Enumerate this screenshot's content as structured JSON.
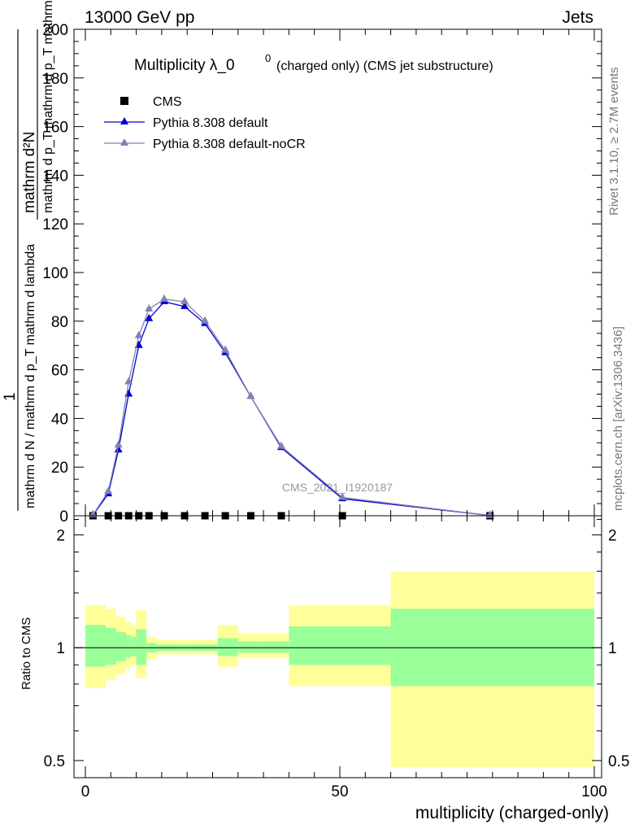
{
  "header": {
    "energy": "13000 GeV pp",
    "category": "Jets"
  },
  "side_labels": {
    "rivet": "Rivet 3.1.10, ≥ 2.7M events",
    "mcplots": "mcplots.cern.ch [arXiv:1306.3436]"
  },
  "chart_data": [
    {
      "type": "line",
      "title_main": "Multiplicity λ_0",
      "title_sup": "0",
      "title_small": "(charged only) (CMS jet substructure)",
      "ylabel_num": "1",
      "ylabel_den": "mathrm d N / mathrm d p_T mathrm d lambda",
      "ylabel_frac_num": "mathrm d²N",
      "ylabel_frac_den": "mathrm d p_T mathrm d p_T mathrm d lambda",
      "watermark": "CMS_2021_I1920187",
      "ylim": [
        0,
        200
      ],
      "y_ticks": [
        0,
        20,
        40,
        60,
        80,
        100,
        120,
        140,
        160,
        180,
        200
      ],
      "xlim": [
        -2,
        100
      ],
      "legend_position": "top-left",
      "legend": [
        "CMS",
        "Pythia 8.308 default",
        "Pythia 8.308 default-noCR"
      ],
      "series": [
        {
          "name": "CMS",
          "color": "#000000",
          "marker": "square",
          "x": [
            1.5,
            4.5,
            6.5,
            8.5,
            10.5,
            12.5,
            15.5,
            19.5,
            23.5,
            27.5,
            32.5,
            38.5,
            50.5,
            79.5
          ],
          "y": [
            0,
            0,
            0,
            0,
            0,
            0,
            0,
            0,
            0,
            0,
            0,
            0,
            0,
            0
          ]
        },
        {
          "name": "Pythia 8.308 default",
          "color": "#0000cc",
          "marker": "triangle",
          "x": [
            1.5,
            4.5,
            6.5,
            8.5,
            10.5,
            12.5,
            15.5,
            19.5,
            23.5,
            27.5,
            32.5,
            38.5,
            50.5,
            79.5
          ],
          "y": [
            0.3,
            9,
            27,
            50,
            70,
            81,
            88,
            86,
            79,
            67,
            49,
            28,
            7,
            0.1
          ]
        },
        {
          "name": "Pythia 8.308 default-noCR",
          "color": "#8080b3",
          "marker": "triangle",
          "x": [
            1.5,
            4.5,
            6.5,
            8.5,
            10.5,
            12.5,
            15.5,
            19.5,
            23.5,
            27.5,
            32.5,
            38.5,
            50.5,
            79.5
          ],
          "y": [
            0.4,
            10,
            29,
            55,
            74,
            85,
            89,
            88,
            80,
            68,
            49,
            28.5,
            7.5,
            0.1
          ]
        }
      ]
    },
    {
      "type": "area",
      "ylabel": "Ratio to CMS",
      "xlabel": "multiplicity (charged-only)",
      "ylim": [
        0.45,
        2.25
      ],
      "y_ticks": [
        0.5,
        1,
        2
      ],
      "x_ticks": [
        0,
        50,
        100
      ],
      "xlim": [
        -2,
        100
      ],
      "bands": {
        "edges": [
          0,
          4,
          6,
          8,
          9,
          10,
          12,
          14,
          18,
          20,
          26,
          30,
          34,
          40,
          60,
          100
        ],
        "green_lo": [
          0.89,
          0.9,
          0.92,
          0.94,
          0.95,
          0.9,
          0.97,
          0.98,
          0.98,
          0.98,
          0.95,
          0.97,
          0.97,
          0.9,
          0.79
        ],
        "green_hi": [
          1.15,
          1.13,
          1.1,
          1.08,
          1.07,
          1.12,
          1.03,
          1.02,
          1.02,
          1.02,
          1.06,
          1.04,
          1.04,
          1.14,
          1.27
        ],
        "yellow_lo": [
          0.78,
          0.82,
          0.85,
          0.88,
          0.9,
          0.83,
          0.93,
          0.96,
          0.96,
          0.96,
          0.89,
          0.94,
          0.94,
          0.79,
          0.48
        ],
        "yellow_hi": [
          1.3,
          1.27,
          1.21,
          1.17,
          1.15,
          1.26,
          1.07,
          1.05,
          1.05,
          1.05,
          1.15,
          1.09,
          1.09,
          1.3,
          1.6
        ],
        "green_color": "#99ff99",
        "yellow_color": "#ffff99"
      },
      "reference_line": 1
    }
  ]
}
